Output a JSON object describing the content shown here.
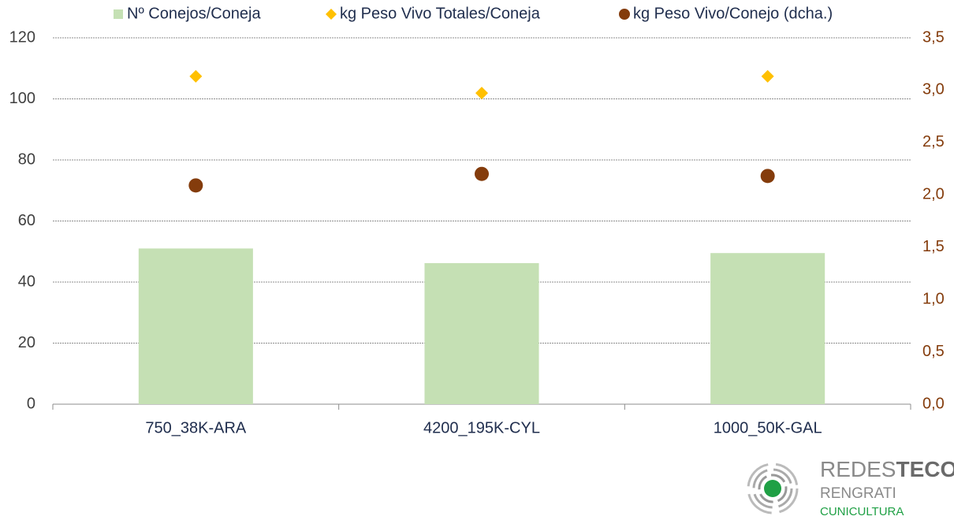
{
  "chart_data": {
    "type": "bar",
    "categories": [
      "750_38K-ARA",
      "4200_195K-CYL",
      "1000_50K-GAL"
    ],
    "series": [
      {
        "name": "Nº Conejos/Coneja",
        "type": "bar",
        "color": "#c5e0b4",
        "values": [
          51,
          46.2,
          49.5
        ]
      },
      {
        "name": "kg Peso Vivo Totales/Coneja",
        "type": "scatter",
        "marker": "diamond",
        "color": "#ffc000",
        "values": [
          107.4,
          101.9,
          107.4
        ]
      },
      {
        "name": "kg Peso Vivo/Conejo (dcha.)",
        "type": "scatter",
        "marker": "circle",
        "color": "#843c0c",
        "axis": "y2",
        "values": [
          2.09,
          2.2,
          2.18
        ]
      }
    ],
    "ylim": [
      0,
      120
    ],
    "yticks": [
      0,
      20,
      40,
      60,
      80,
      100,
      120
    ],
    "y2lim": [
      0,
      3.5
    ],
    "y2ticks": [
      {
        "value": 0,
        "label": "0,0"
      },
      {
        "value": 0.5,
        "label": "0,5"
      },
      {
        "value": 1,
        "label": "1,0"
      },
      {
        "value": 1.5,
        "label": "1,5"
      },
      {
        "value": 2,
        "label": "2,0"
      },
      {
        "value": 2.5,
        "label": "2,5"
      },
      {
        "value": 3,
        "label": "3,0"
      },
      {
        "value": 3.5,
        "label": "3,5"
      }
    ],
    "grid": true,
    "legend": "top"
  },
  "logo": {
    "brand_light": "REDES",
    "brand_bold": "TECO",
    "line2": "RENGRATI",
    "line3": "CUNICULTURA"
  }
}
